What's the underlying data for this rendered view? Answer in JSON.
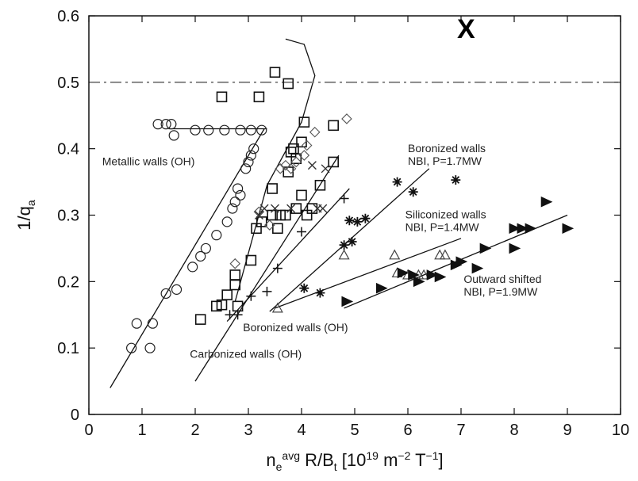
{
  "chart_data": {
    "type": "scatter",
    "title": "",
    "xlabel": "n_e^avg R/B_t [10^19 m^-2 T^-1]",
    "ylabel": "1/q_a",
    "xlim": [
      0,
      10
    ],
    "ylim": [
      0,
      0.6
    ],
    "xticks": [
      "0",
      "1",
      "2",
      "3",
      "4",
      "5",
      "6",
      "7",
      "8",
      "9",
      "10"
    ],
    "yticks": [
      "0",
      "0.1",
      "0.2",
      "0.3",
      "0.4",
      "0.5",
      "0.6"
    ],
    "reference_line": {
      "y": 0.5,
      "style": "dash-dot"
    },
    "corner_mark": "X",
    "annotations": [
      {
        "lines": [
          "Metallic walls (OH)"
        ],
        "x": 0.25,
        "y": 0.375
      },
      {
        "lines": [
          "Boronized walls",
          "NBI, P=1.7MW"
        ],
        "x": 6.0,
        "y": 0.395
      },
      {
        "lines": [
          "Siliconized walls",
          "NBI, P=1.4MW"
        ],
        "x": 5.95,
        "y": 0.295
      },
      {
        "lines": [
          "Outward shifted",
          "NBI, P=1.9MW"
        ],
        "x": 7.05,
        "y": 0.198
      },
      {
        "lines": [
          "Boronized walls (OH)"
        ],
        "x": 2.9,
        "y": 0.125
      },
      {
        "lines": [
          "Carbonized walls (OH)"
        ],
        "x": 1.9,
        "y": 0.085
      }
    ],
    "series": [
      {
        "marker": "circle",
        "points": [
          [
            0.8,
            0.1
          ],
          [
            0.9,
            0.137
          ],
          [
            1.15,
            0.1
          ],
          [
            1.2,
            0.137
          ],
          [
            1.45,
            0.182
          ],
          [
            1.65,
            0.188
          ],
          [
            1.95,
            0.222
          ],
          [
            2.1,
            0.238
          ],
          [
            2.2,
            0.25
          ],
          [
            2.4,
            0.27
          ],
          [
            2.6,
            0.29
          ],
          [
            2.7,
            0.31
          ],
          [
            2.75,
            0.32
          ],
          [
            2.8,
            0.34
          ],
          [
            2.85,
            0.33
          ],
          [
            2.95,
            0.37
          ],
          [
            3.0,
            0.38
          ],
          [
            3.05,
            0.39
          ],
          [
            3.1,
            0.4
          ],
          [
            1.3,
            0.437
          ],
          [
            1.45,
            0.437
          ],
          [
            1.55,
            0.437
          ],
          [
            1.6,
            0.42
          ],
          [
            2.0,
            0.428
          ],
          [
            2.25,
            0.428
          ],
          [
            2.55,
            0.428
          ],
          [
            2.85,
            0.428
          ],
          [
            3.05,
            0.428
          ],
          [
            3.25,
            0.428
          ]
        ]
      },
      {
        "marker": "square",
        "points": [
          [
            2.1,
            0.143
          ],
          [
            2.4,
            0.163
          ],
          [
            2.5,
            0.165
          ],
          [
            2.8,
            0.163
          ],
          [
            2.6,
            0.18
          ],
          [
            2.75,
            0.195
          ],
          [
            2.75,
            0.21
          ],
          [
            3.05,
            0.232
          ],
          [
            3.15,
            0.28
          ],
          [
            3.25,
            0.29
          ],
          [
            3.45,
            0.3
          ],
          [
            3.55,
            0.28
          ],
          [
            3.6,
            0.3
          ],
          [
            3.7,
            0.3
          ],
          [
            3.9,
            0.31
          ],
          [
            4.0,
            0.33
          ],
          [
            4.1,
            0.3
          ],
          [
            4.2,
            0.31
          ],
          [
            4.35,
            0.345
          ],
          [
            3.45,
            0.34
          ],
          [
            3.75,
            0.365
          ],
          [
            3.8,
            0.395
          ],
          [
            3.85,
            0.4
          ],
          [
            3.9,
            0.385
          ],
          [
            4.0,
            0.41
          ],
          [
            4.05,
            0.44
          ],
          [
            4.6,
            0.38
          ],
          [
            4.6,
            0.435
          ],
          [
            2.5,
            0.478
          ],
          [
            3.2,
            0.478
          ],
          [
            3.5,
            0.515
          ],
          [
            3.75,
            0.498
          ]
        ]
      },
      {
        "marker": "diamond",
        "points": [
          [
            2.75,
            0.227
          ],
          [
            3.2,
            0.305
          ],
          [
            3.4,
            0.285
          ],
          [
            3.6,
            0.37
          ],
          [
            3.7,
            0.375
          ],
          [
            3.8,
            0.37
          ],
          [
            3.9,
            0.38
          ],
          [
            4.05,
            0.39
          ],
          [
            4.1,
            0.405
          ],
          [
            4.25,
            0.425
          ],
          [
            4.85,
            0.445
          ]
        ]
      },
      {
        "marker": "x",
        "points": [
          [
            3.2,
            0.3
          ],
          [
            3.3,
            0.31
          ],
          [
            3.5,
            0.31
          ],
          [
            3.8,
            0.31
          ],
          [
            4.3,
            0.31
          ],
          [
            4.4,
            0.31
          ],
          [
            4.45,
            0.37
          ],
          [
            4.2,
            0.375
          ]
        ]
      },
      {
        "marker": "plus",
        "points": [
          [
            2.65,
            0.15
          ],
          [
            2.8,
            0.15
          ],
          [
            3.05,
            0.178
          ],
          [
            3.35,
            0.185
          ],
          [
            3.55,
            0.22
          ],
          [
            4.0,
            0.275
          ],
          [
            4.8,
            0.325
          ]
        ]
      },
      {
        "marker": "triangle-up",
        "points": [
          [
            3.55,
            0.16
          ],
          [
            4.8,
            0.24
          ],
          [
            5.75,
            0.24
          ],
          [
            5.8,
            0.213
          ],
          [
            6.0,
            0.21
          ],
          [
            6.2,
            0.21
          ],
          [
            6.3,
            0.21
          ],
          [
            6.6,
            0.24
          ],
          [
            6.7,
            0.24
          ]
        ]
      },
      {
        "marker": "asterisk",
        "points": [
          [
            4.05,
            0.19
          ],
          [
            4.35,
            0.183
          ],
          [
            4.8,
            0.255
          ],
          [
            4.9,
            0.292
          ],
          [
            4.95,
            0.26
          ],
          [
            5.05,
            0.29
          ],
          [
            5.2,
            0.295
          ],
          [
            5.8,
            0.35
          ],
          [
            6.1,
            0.335
          ],
          [
            6.9,
            0.353
          ]
        ]
      },
      {
        "marker": "triangle-right",
        "points": [
          [
            4.85,
            0.17
          ],
          [
            5.5,
            0.19
          ],
          [
            5.9,
            0.213
          ],
          [
            6.1,
            0.21
          ],
          [
            6.2,
            0.2
          ],
          [
            6.45,
            0.21
          ],
          [
            6.6,
            0.207
          ],
          [
            6.9,
            0.225
          ],
          [
            7.0,
            0.23
          ],
          [
            7.3,
            0.22
          ],
          [
            7.45,
            0.25
          ],
          [
            8.0,
            0.25
          ],
          [
            8.0,
            0.28
          ],
          [
            8.15,
            0.28
          ],
          [
            8.3,
            0.28
          ],
          [
            8.6,
            0.32
          ],
          [
            9.0,
            0.28
          ]
        ]
      }
    ],
    "fit_lines": [
      {
        "points": [
          [
            0.4,
            0.04
          ],
          [
            3.3,
            0.43
          ]
        ]
      },
      {
        "points": [
          [
            2.0,
            0.05
          ],
          [
            4.7,
            0.39
          ]
        ]
      },
      {
        "points": [
          [
            2.6,
            0.14
          ],
          [
            4.9,
            0.34
          ]
        ]
      },
      {
        "points": [
          [
            3.4,
            0.155
          ],
          [
            6.4,
            0.37
          ]
        ]
      },
      {
        "points": [
          [
            3.5,
            0.16
          ],
          [
            7.0,
            0.265
          ]
        ]
      },
      {
        "points": [
          [
            4.8,
            0.16
          ],
          [
            9.0,
            0.3
          ]
        ]
      },
      {
        "points": [
          [
            1.5,
            0.43
          ],
          [
            3.35,
            0.43
          ]
        ]
      },
      {
        "points": [
          [
            2.75,
            0.17
          ],
          [
            3.35,
            0.345
          ],
          [
            4.0,
            0.44
          ],
          [
            4.25,
            0.51
          ],
          [
            4.05,
            0.557
          ],
          [
            3.7,
            0.565
          ]
        ]
      }
    ]
  }
}
